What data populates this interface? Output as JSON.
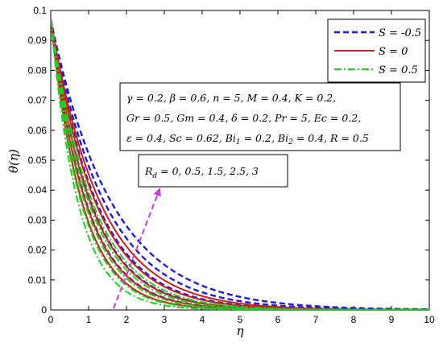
{
  "chart_data": {
    "type": "line",
    "xlabel": "η",
    "ylabel": "θ(η)",
    "xlim": [
      0,
      10
    ],
    "ylim": [
      0,
      0.1
    ],
    "xticks": [
      "0",
      "1",
      "2",
      "3",
      "4",
      "5",
      "6",
      "7",
      "8",
      "9",
      "10"
    ],
    "yticks": [
      "0",
      "0.01",
      "0.02",
      "0.03",
      "0.04",
      "0.05",
      "0.06",
      "0.07",
      "0.08",
      "0.09",
      "0.1"
    ],
    "grid": false,
    "legend_position": "top-right",
    "theta0": 0.097,
    "rd_values": [
      0,
      0.5,
      1.5,
      2.5,
      3
    ],
    "series": [
      {
        "name": "S = -0.5",
        "color": "#1c1cdc",
        "dash": "dashed",
        "decay_rates": [
          1.06,
          0.94,
          0.82,
          0.7,
          0.62
        ]
      },
      {
        "name": "S = 0",
        "color": "#c8201c",
        "dash": "solid",
        "decay_rates": [
          1.2,
          1.07,
          0.95,
          0.84,
          0.76
        ]
      },
      {
        "name": "S = 0.5",
        "color": "#22cc22",
        "dash": "dashdot",
        "decay_rates": [
          1.38,
          1.24,
          1.11,
          0.99,
          0.9
        ]
      }
    ],
    "annotations": {
      "params_line1": "γ = 0.2, β = 0.6, n = 5, M = 0.4, K = 0.2,",
      "params_line2": "Gr = 0.5, Gm = 0.4, δ = 0.2, Pr = 5, Ec = 0.2,",
      "params_line3": "ε = 0.4, Sc = 0.62, Bi",
      "params_line3_sub1": "1",
      "params_line3_mid": " = 0.2, Bi",
      "params_line3_sub2": "2",
      "params_line3_end": " = 0.4, R = 0.5",
      "rd_label_main": "R",
      "rd_label_sub": "d",
      "rd_label_values": " = 0, 0.5, 1.5, 2.5, 3",
      "arrow_color": "#c040e0"
    }
  }
}
